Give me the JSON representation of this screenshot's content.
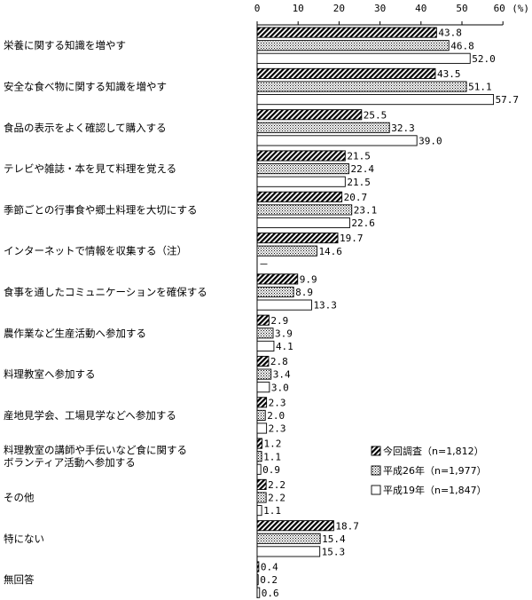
{
  "chart_data": {
    "type": "bar",
    "orientation": "horizontal",
    "title": "",
    "xlabel": "",
    "ylabel": "",
    "unit_label": "(%)",
    "xlim": [
      0,
      60
    ],
    "xticks": [
      0,
      10,
      20,
      30,
      40,
      50,
      60
    ],
    "grid": false,
    "legend_position": "bottom-right",
    "categories": [
      [
        "栄養に関する知識を増やす"
      ],
      [
        "安全な食べ物に関する知識を増やす"
      ],
      [
        "食品の表示をよく確認して購入する"
      ],
      [
        "テレビや雑誌・本を見て料理を覚える"
      ],
      [
        "季節ごとの行事食や郷土料理を大切にする"
      ],
      [
        "インターネットで情報を収集する（注）"
      ],
      [
        "食事を通したコミュニケーションを確保する"
      ],
      [
        "農作業など生産活動へ参加する"
      ],
      [
        "料理教室へ参加する"
      ],
      [
        "産地見学会、工場見学などへ参加する"
      ],
      [
        "料理教室の講師や手伝いなど食に関する",
        "ボランティア活動へ参加する"
      ],
      [
        "その他"
      ],
      [
        "特にない"
      ],
      [
        "無回答"
      ]
    ],
    "series": [
      {
        "name": "今回調査（n=1,812）",
        "pattern": "hatch",
        "values": [
          43.8,
          43.5,
          25.5,
          21.5,
          20.7,
          19.7,
          9.9,
          2.9,
          2.8,
          2.3,
          1.2,
          2.2,
          18.7,
          0.4
        ],
        "labels": [
          "43.8",
          "43.5",
          "25.5",
          "21.5",
          "20.7",
          "19.7",
          "9.9",
          "2.9",
          "2.8",
          "2.3",
          "1.2",
          "2.2",
          "18.7",
          "0.4"
        ]
      },
      {
        "name": "平成26年（n=1,977）",
        "pattern": "dots",
        "values": [
          46.8,
          51.1,
          32.3,
          22.4,
          23.1,
          14.6,
          8.9,
          3.9,
          3.4,
          2.0,
          1.1,
          2.2,
          15.4,
          0.2
        ],
        "labels": [
          "46.8",
          "51.1",
          "32.3",
          "22.4",
          "23.1",
          "14.6",
          "8.9",
          "3.9",
          "3.4",
          "2.0",
          "1.1",
          "2.2",
          "15.4",
          "0.2"
        ]
      },
      {
        "name": "平成19年（n=1,847）",
        "pattern": "plain",
        "values": [
          52.0,
          57.7,
          39.0,
          21.5,
          22.6,
          null,
          13.3,
          4.1,
          3.0,
          2.3,
          0.9,
          1.1,
          15.3,
          0.6
        ],
        "labels": [
          "52.0",
          "57.7",
          "39.0",
          "21.5",
          "22.6",
          "－",
          "13.3",
          "4.1",
          "3.0",
          "2.3",
          "0.9",
          "1.1",
          "15.3",
          "0.6"
        ]
      }
    ]
  }
}
